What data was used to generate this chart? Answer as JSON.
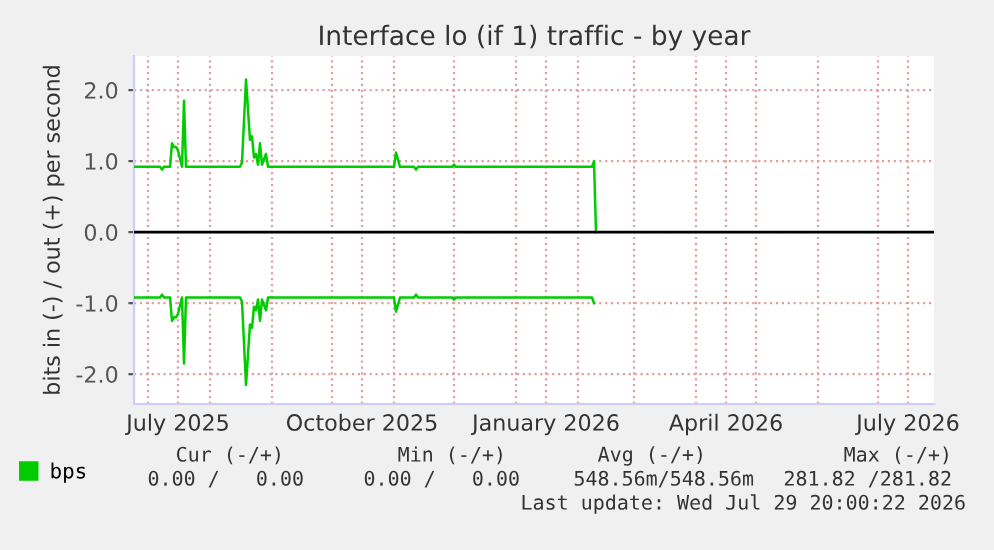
{
  "chart_data": {
    "type": "line",
    "title": "Interface lo (if 1) traffic - by year",
    "ylabel": "bits in (-) / out (+) per second",
    "x": [
      "2025-06-24",
      "2025-07-07",
      "2025-07-08",
      "2025-07-09",
      "2025-07-12",
      "2025-07-13",
      "2025-07-14",
      "2025-07-15",
      "2025-07-16",
      "2025-07-18",
      "2025-07-19",
      "2025-07-20",
      "2025-08-16",
      "2025-08-17",
      "2025-08-19",
      "2025-08-21",
      "2025-08-22",
      "2025-08-23",
      "2025-08-24",
      "2025-08-25",
      "2025-08-26",
      "2025-08-27",
      "2025-08-29",
      "2025-08-30",
      "2025-11-01",
      "2025-11-02",
      "2025-11-04",
      "2025-11-11",
      "2025-11-12",
      "2025-11-13",
      "2025-11-30",
      "2025-12-01",
      "2025-12-02",
      "2026-02-08",
      "2026-02-09",
      "2026-02-10"
    ],
    "series": [
      {
        "name": "bps",
        "color": "#00cc00",
        "values": [
          0.92,
          0.92,
          0.88,
          0.92,
          0.92,
          1.25,
          1.2,
          1.2,
          1.15,
          0.92,
          1.85,
          0.92,
          0.92,
          0.98,
          2.15,
          1.3,
          1.35,
          1.05,
          1.1,
          0.95,
          1.25,
          0.95,
          1.1,
          0.92,
          0.92,
          1.12,
          0.92,
          0.92,
          0.88,
          0.92,
          0.92,
          0.95,
          0.92,
          0.92,
          1.0,
          0.0
        ]
      },
      {
        "color": "#00cc00",
        "values": [
          -0.92,
          -0.92,
          -0.88,
          -0.92,
          -0.92,
          -1.25,
          -1.2,
          -1.2,
          -1.15,
          -0.92,
          -1.85,
          -0.92,
          -0.92,
          -0.98,
          -2.15,
          -1.3,
          -1.35,
          -1.05,
          -1.1,
          -0.95,
          -1.25,
          -0.95,
          -1.1,
          -0.92,
          -0.92,
          -1.12,
          -0.92,
          -0.92,
          -0.88,
          -0.92,
          -0.92,
          -0.95,
          -0.92,
          -0.92,
          -1.0,
          null
        ]
      }
    ],
    "xlim": [
      "2025-06-24",
      "2026-07-29"
    ],
    "xticks": [
      {
        "value": "2025-07-01",
        "label": null
      },
      {
        "value": "2025-07-16",
        "label": "July 2025"
      },
      {
        "value": "2025-08-01",
        "label": null
      },
      {
        "value": "2025-09-01",
        "label": null
      },
      {
        "value": "2025-10-01",
        "label": null
      },
      {
        "value": "2025-10-16",
        "label": "October 2025"
      },
      {
        "value": "2025-11-01",
        "label": null
      },
      {
        "value": "2025-12-01",
        "label": null
      },
      {
        "value": "2026-01-01",
        "label": null
      },
      {
        "value": "2026-01-16",
        "label": "January 2026"
      },
      {
        "value": "2026-02-01",
        "label": null
      },
      {
        "value": "2026-03-01",
        "label": null
      },
      {
        "value": "2026-04-01",
        "label": null
      },
      {
        "value": "2026-04-16",
        "label": "April 2026"
      },
      {
        "value": "2026-05-01",
        "label": null
      },
      {
        "value": "2026-06-01",
        "label": null
      },
      {
        "value": "2026-07-01",
        "label": null
      },
      {
        "value": "2026-07-16",
        "label": "July 2026"
      }
    ],
    "ylim": [
      -2.42,
      2.48
    ],
    "yticks": [
      {
        "value": -2,
        "label": "-2.0"
      },
      {
        "value": -1,
        "label": "-1.0"
      },
      {
        "value": 0,
        "label": "0.0"
      },
      {
        "value": 1,
        "label": "1.0"
      },
      {
        "value": 2,
        "label": "2.0"
      }
    ],
    "ref_lines": [
      {
        "axis": "y",
        "value": 0,
        "color": "#000000"
      }
    ],
    "grid": true,
    "legend": "bottom left",
    "marker": "none",
    "line_style": "solid",
    "annotations": [
      "Cur (-/+)",
      "Min (-/+)",
      "Avg (-/+)",
      "Max (-/+)",
      "0.00 /   0.00",
      "0.00 /   0.00",
      "548.56m/548.56m",
      "281.82 /281.82",
      "Last update: Wed Jul 29 20:00:22 2026"
    ]
  }
}
